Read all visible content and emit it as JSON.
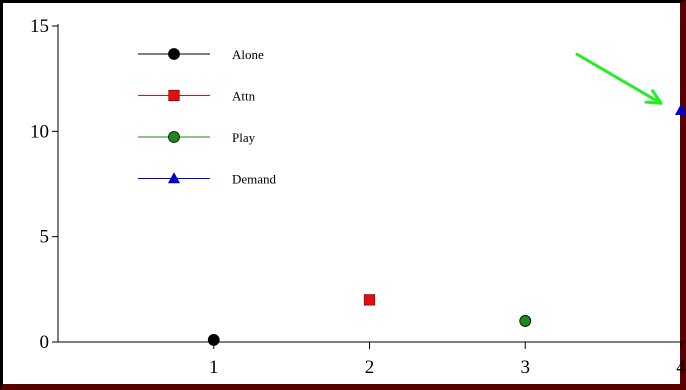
{
  "chart_data": {
    "type": "scatter",
    "title": "",
    "xlabel": "",
    "ylabel": "",
    "xlim": [
      0,
      4
    ],
    "ylim": [
      0,
      15
    ],
    "x_ticks": [
      "1",
      "2",
      "3",
      "4"
    ],
    "y_ticks": [
      "0",
      "5",
      "10",
      "15"
    ],
    "grid": false,
    "legend_position": "top-left",
    "series": [
      {
        "name": "Alone",
        "marker": "circle",
        "color": "#000000",
        "points": [
          [
            1,
            0.1
          ]
        ]
      },
      {
        "name": "Attn",
        "marker": "square",
        "color": "#e01010",
        "points": [
          [
            2,
            2
          ]
        ]
      },
      {
        "name": "Play",
        "marker": "circle",
        "color": "#1a8a1a",
        "points": [
          [
            3,
            1
          ]
        ]
      },
      {
        "name": "Demand",
        "marker": "triangle",
        "color": "#0000cc",
        "points": [
          [
            4,
            11
          ]
        ]
      }
    ],
    "annotations": [
      {
        "type": "arrow",
        "color": "#22ee22",
        "points_to": "Demand"
      }
    ]
  }
}
